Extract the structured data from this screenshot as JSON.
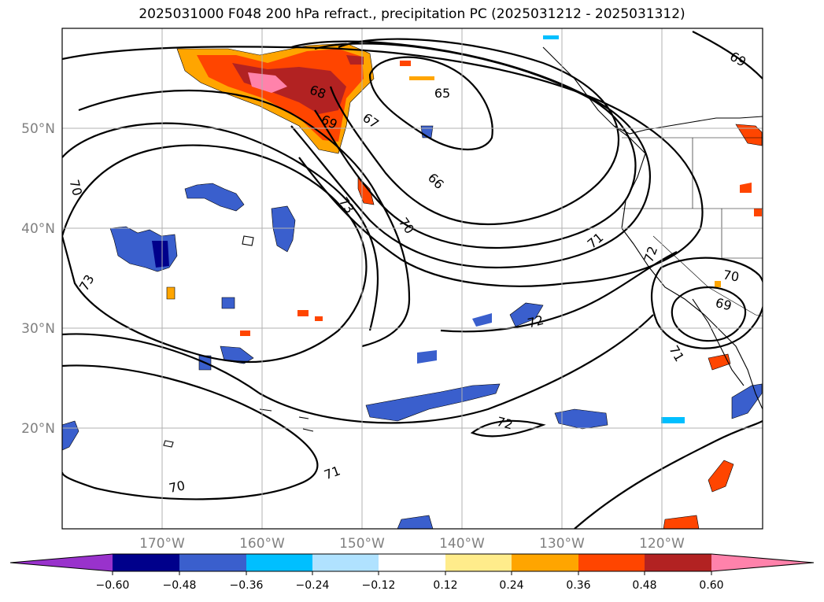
{
  "title": "2025031000 F048 200 hPa refract., precipitation PC (2025031212 - 2025031312)",
  "map": {
    "lat_labels": [
      "50°N",
      "40°N",
      "30°N",
      "20°N"
    ],
    "lon_labels": [
      "170°W",
      "160°W",
      "150°W",
      "140°W",
      "130°W",
      "120°W"
    ],
    "contour_labels": [
      "69",
      "65",
      "68",
      "69",
      "67",
      "66",
      "70",
      "73",
      "70",
      "71",
      "72",
      "73",
      "70",
      "69",
      "71",
      "72",
      "72",
      "71",
      "70"
    ]
  },
  "colorbar": {
    "tick_labels": [
      "−0.60",
      "−0.48",
      "−0.36",
      "−0.24",
      "−0.12",
      "0.12",
      "0.24",
      "0.36",
      "0.48",
      "0.60"
    ],
    "colors": {
      "under": "#9932cc",
      "b1": "#00008b",
      "b2": "#3a5fcd",
      "b3": "#00bfff",
      "b4": "#b0e2ff",
      "b5": "#ffffff",
      "b6": "#ffec8b",
      "b7": "#ffa500",
      "b8": "#ff4500",
      "b9": "#b22222",
      "over": "#ff82ab"
    }
  }
}
